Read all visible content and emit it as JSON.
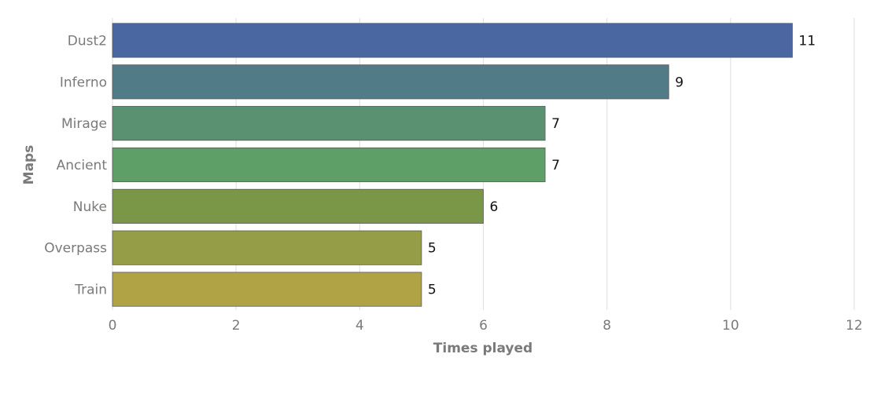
{
  "chart_data": {
    "type": "bar",
    "orientation": "horizontal",
    "categories": [
      "Dust2",
      "Inferno",
      "Mirage",
      "Ancient",
      "Nuke",
      "Overpass",
      "Train"
    ],
    "values": [
      11,
      9,
      7,
      7,
      6,
      5,
      5
    ],
    "colors": [
      "#4a67a1",
      "#517b86",
      "#5a9171",
      "#5d9f66",
      "#7a9647",
      "#969d47",
      "#b0a345"
    ],
    "xlabel": "Times played",
    "ylabel": "Maps",
    "xlim": [
      0,
      12
    ],
    "xticks": [
      0,
      2,
      4,
      6,
      8,
      10,
      12
    ],
    "grid": true,
    "data_labels": true
  }
}
